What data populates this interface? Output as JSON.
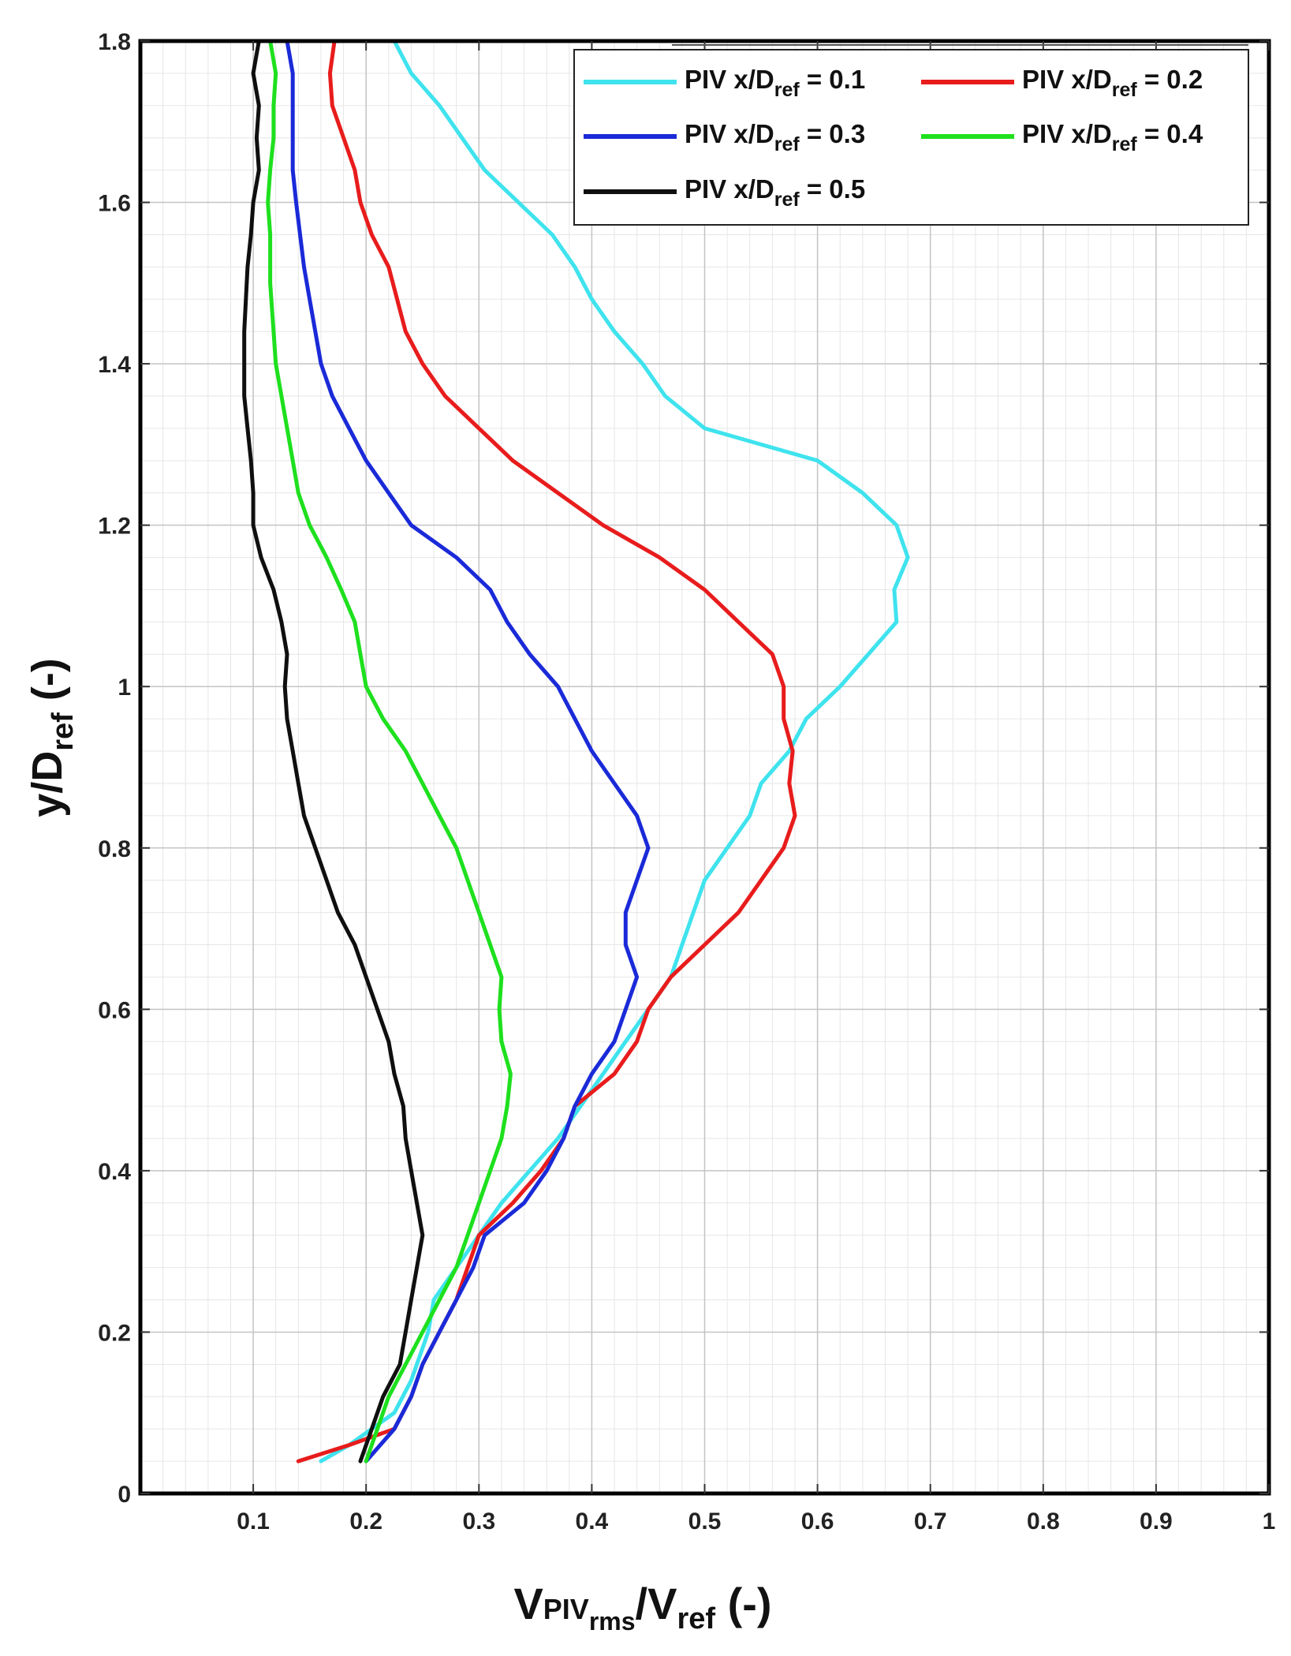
{
  "chart_data": {
    "type": "line",
    "title": "",
    "xlabel": {
      "main": "V",
      "sub": "PIV",
      "subsub": "rms",
      "mid": "/V",
      "sub2": "ref",
      "tail": " (-)"
    },
    "ylabel": {
      "main": "y/D",
      "sub": "ref",
      "tail": " (-)"
    },
    "xlim": [
      0,
      1
    ],
    "ylim": [
      0,
      1.8
    ],
    "grid": true,
    "legend_position": "top-right",
    "x_ticks": [
      {
        "value": 0.1,
        "label": "0.1"
      },
      {
        "value": 0.2,
        "label": "0.2"
      },
      {
        "value": 0.3,
        "label": "0.3"
      },
      {
        "value": 0.4,
        "label": "0.4"
      },
      {
        "value": 0.5,
        "label": "0.5"
      },
      {
        "value": 0.6,
        "label": "0.6"
      },
      {
        "value": 0.7,
        "label": "0.7"
      },
      {
        "value": 0.8,
        "label": "0.8"
      },
      {
        "value": 0.9,
        "label": "0.9"
      },
      {
        "value": 1.0,
        "label": "1"
      }
    ],
    "y_ticks": [
      {
        "value": 0,
        "label": "0"
      },
      {
        "value": 0.2,
        "label": "0.2"
      },
      {
        "value": 0.4,
        "label": "0.4"
      },
      {
        "value": 0.6,
        "label": "0.6"
      },
      {
        "value": 0.8,
        "label": "0.8"
      },
      {
        "value": 1.0,
        "label": "1"
      },
      {
        "value": 1.2,
        "label": "1.2"
      },
      {
        "value": 1.4,
        "label": "1.4"
      },
      {
        "value": 1.6,
        "label": "1.6"
      },
      {
        "value": 1.8,
        "label": "1.8"
      }
    ],
    "series": [
      {
        "name": "PIV x/Dref = 0.1",
        "legend": {
          "prefix": "PIV x/D",
          "sub": "ref",
          "suffix": " = 0.1"
        },
        "color": "#3fe3ee",
        "points": [
          [
            0.16,
            0.04
          ],
          [
            0.185,
            0.06
          ],
          [
            0.205,
            0.08
          ],
          [
            0.225,
            0.1
          ],
          [
            0.24,
            0.14
          ],
          [
            0.255,
            0.2
          ],
          [
            0.26,
            0.24
          ],
          [
            0.28,
            0.28
          ],
          [
            0.3,
            0.32
          ],
          [
            0.32,
            0.36
          ],
          [
            0.345,
            0.4
          ],
          [
            0.37,
            0.44
          ],
          [
            0.39,
            0.48
          ],
          [
            0.41,
            0.52
          ],
          [
            0.43,
            0.56
          ],
          [
            0.45,
            0.6
          ],
          [
            0.47,
            0.64
          ],
          [
            0.49,
            0.72
          ],
          [
            0.5,
            0.76
          ],
          [
            0.52,
            0.8
          ],
          [
            0.54,
            0.84
          ],
          [
            0.55,
            0.88
          ],
          [
            0.575,
            0.92
          ],
          [
            0.59,
            0.96
          ],
          [
            0.62,
            1.0
          ],
          [
            0.645,
            1.04
          ],
          [
            0.67,
            1.08
          ],
          [
            0.668,
            1.12
          ],
          [
            0.68,
            1.16
          ],
          [
            0.67,
            1.2
          ],
          [
            0.64,
            1.24
          ],
          [
            0.6,
            1.28
          ],
          [
            0.55,
            1.3
          ],
          [
            0.5,
            1.32
          ],
          [
            0.465,
            1.36
          ],
          [
            0.445,
            1.4
          ],
          [
            0.42,
            1.44
          ],
          [
            0.4,
            1.48
          ],
          [
            0.385,
            1.52
          ],
          [
            0.365,
            1.56
          ],
          [
            0.335,
            1.6
          ],
          [
            0.305,
            1.64
          ],
          [
            0.285,
            1.68
          ],
          [
            0.265,
            1.72
          ],
          [
            0.24,
            1.76
          ],
          [
            0.225,
            1.8
          ]
        ]
      },
      {
        "name": "PIV x/Dref = 0.2",
        "legend": {
          "prefix": "PIV x/D",
          "sub": "ref",
          "suffix": " = 0.2"
        },
        "color": "#e81c1c",
        "points": [
          [
            0.14,
            0.04
          ],
          [
            0.185,
            0.06
          ],
          [
            0.225,
            0.08
          ],
          [
            0.24,
            0.12
          ],
          [
            0.25,
            0.16
          ],
          [
            0.265,
            0.2
          ],
          [
            0.28,
            0.24
          ],
          [
            0.29,
            0.28
          ],
          [
            0.3,
            0.32
          ],
          [
            0.33,
            0.36
          ],
          [
            0.355,
            0.4
          ],
          [
            0.375,
            0.44
          ],
          [
            0.385,
            0.48
          ],
          [
            0.42,
            0.52
          ],
          [
            0.44,
            0.56
          ],
          [
            0.45,
            0.6
          ],
          [
            0.47,
            0.64
          ],
          [
            0.5,
            0.68
          ],
          [
            0.53,
            0.72
          ],
          [
            0.55,
            0.76
          ],
          [
            0.57,
            0.8
          ],
          [
            0.58,
            0.84
          ],
          [
            0.575,
            0.88
          ],
          [
            0.578,
            0.92
          ],
          [
            0.57,
            0.96
          ],
          [
            0.57,
            1.0
          ],
          [
            0.56,
            1.04
          ],
          [
            0.53,
            1.08
          ],
          [
            0.5,
            1.12
          ],
          [
            0.46,
            1.16
          ],
          [
            0.41,
            1.2
          ],
          [
            0.37,
            1.24
          ],
          [
            0.33,
            1.28
          ],
          [
            0.3,
            1.32
          ],
          [
            0.27,
            1.36
          ],
          [
            0.25,
            1.4
          ],
          [
            0.235,
            1.44
          ],
          [
            0.22,
            1.52
          ],
          [
            0.205,
            1.56
          ],
          [
            0.195,
            1.6
          ],
          [
            0.19,
            1.64
          ],
          [
            0.18,
            1.68
          ],
          [
            0.17,
            1.72
          ],
          [
            0.168,
            1.76
          ],
          [
            0.172,
            1.8
          ]
        ]
      },
      {
        "name": "PIV x/Dref = 0.3",
        "legend": {
          "prefix": "PIV x/D",
          "sub": "ref",
          "suffix": " = 0.3"
        },
        "color": "#1a2ad8",
        "points": [
          [
            0.2,
            0.04
          ],
          [
            0.225,
            0.08
          ],
          [
            0.24,
            0.12
          ],
          [
            0.25,
            0.16
          ],
          [
            0.265,
            0.2
          ],
          [
            0.28,
            0.24
          ],
          [
            0.295,
            0.28
          ],
          [
            0.305,
            0.32
          ],
          [
            0.34,
            0.36
          ],
          [
            0.36,
            0.4
          ],
          [
            0.375,
            0.44
          ],
          [
            0.385,
            0.48
          ],
          [
            0.4,
            0.52
          ],
          [
            0.42,
            0.56
          ],
          [
            0.44,
            0.64
          ],
          [
            0.43,
            0.68
          ],
          [
            0.43,
            0.72
          ],
          [
            0.44,
            0.76
          ],
          [
            0.45,
            0.8
          ],
          [
            0.44,
            0.84
          ],
          [
            0.42,
            0.88
          ],
          [
            0.4,
            0.92
          ],
          [
            0.385,
            0.96
          ],
          [
            0.37,
            1.0
          ],
          [
            0.345,
            1.04
          ],
          [
            0.325,
            1.08
          ],
          [
            0.31,
            1.12
          ],
          [
            0.28,
            1.16
          ],
          [
            0.24,
            1.2
          ],
          [
            0.22,
            1.24
          ],
          [
            0.2,
            1.28
          ],
          [
            0.185,
            1.32
          ],
          [
            0.17,
            1.36
          ],
          [
            0.16,
            1.4
          ],
          [
            0.155,
            1.44
          ],
          [
            0.15,
            1.48
          ],
          [
            0.145,
            1.52
          ],
          [
            0.138,
            1.6
          ],
          [
            0.135,
            1.64
          ],
          [
            0.135,
            1.72
          ],
          [
            0.135,
            1.76
          ],
          [
            0.13,
            1.8
          ]
        ]
      },
      {
        "name": "PIV x/Dref = 0.4",
        "legend": {
          "prefix": "PIV x/D",
          "sub": "ref",
          "suffix": " = 0.4"
        },
        "color": "#1ee01e",
        "points": [
          [
            0.2,
            0.04
          ],
          [
            0.21,
            0.08
          ],
          [
            0.22,
            0.12
          ],
          [
            0.235,
            0.16
          ],
          [
            0.25,
            0.2
          ],
          [
            0.265,
            0.24
          ],
          [
            0.28,
            0.28
          ],
          [
            0.29,
            0.32
          ],
          [
            0.3,
            0.36
          ],
          [
            0.31,
            0.4
          ],
          [
            0.32,
            0.44
          ],
          [
            0.325,
            0.48
          ],
          [
            0.328,
            0.52
          ],
          [
            0.32,
            0.56
          ],
          [
            0.318,
            0.6
          ],
          [
            0.32,
            0.64
          ],
          [
            0.31,
            0.68
          ],
          [
            0.3,
            0.72
          ],
          [
            0.29,
            0.76
          ],
          [
            0.28,
            0.8
          ],
          [
            0.265,
            0.84
          ],
          [
            0.25,
            0.88
          ],
          [
            0.235,
            0.92
          ],
          [
            0.215,
            0.96
          ],
          [
            0.2,
            1.0
          ],
          [
            0.195,
            1.04
          ],
          [
            0.19,
            1.08
          ],
          [
            0.178,
            1.12
          ],
          [
            0.165,
            1.16
          ],
          [
            0.15,
            1.2
          ],
          [
            0.14,
            1.24
          ],
          [
            0.135,
            1.28
          ],
          [
            0.125,
            1.36
          ],
          [
            0.12,
            1.4
          ],
          [
            0.118,
            1.44
          ],
          [
            0.115,
            1.5
          ],
          [
            0.115,
            1.56
          ],
          [
            0.113,
            1.6
          ],
          [
            0.115,
            1.64
          ],
          [
            0.118,
            1.68
          ],
          [
            0.118,
            1.72
          ],
          [
            0.12,
            1.76
          ],
          [
            0.115,
            1.8
          ]
        ]
      },
      {
        "name": "PIV x/Dref = 0.5",
        "legend": {
          "prefix": "PIV x/D",
          "sub": "ref",
          "suffix": " = 0.5"
        },
        "color": "#0f0f0f",
        "points": [
          [
            0.195,
            0.04
          ],
          [
            0.205,
            0.08
          ],
          [
            0.215,
            0.12
          ],
          [
            0.23,
            0.16
          ],
          [
            0.235,
            0.2
          ],
          [
            0.24,
            0.24
          ],
          [
            0.245,
            0.28
          ],
          [
            0.25,
            0.32
          ],
          [
            0.245,
            0.36
          ],
          [
            0.24,
            0.4
          ],
          [
            0.235,
            0.44
          ],
          [
            0.233,
            0.48
          ],
          [
            0.225,
            0.52
          ],
          [
            0.22,
            0.56
          ],
          [
            0.21,
            0.6
          ],
          [
            0.2,
            0.64
          ],
          [
            0.19,
            0.68
          ],
          [
            0.175,
            0.72
          ],
          [
            0.165,
            0.76
          ],
          [
            0.155,
            0.8
          ],
          [
            0.145,
            0.84
          ],
          [
            0.14,
            0.88
          ],
          [
            0.135,
            0.92
          ],
          [
            0.13,
            0.96
          ],
          [
            0.128,
            1.0
          ],
          [
            0.13,
            1.04
          ],
          [
            0.125,
            1.08
          ],
          [
            0.118,
            1.12
          ],
          [
            0.107,
            1.16
          ],
          [
            0.1,
            1.2
          ],
          [
            0.1,
            1.24
          ],
          [
            0.098,
            1.28
          ],
          [
            0.095,
            1.32
          ],
          [
            0.092,
            1.36
          ],
          [
            0.092,
            1.4
          ],
          [
            0.092,
            1.44
          ],
          [
            0.095,
            1.52
          ],
          [
            0.098,
            1.56
          ],
          [
            0.1,
            1.6
          ],
          [
            0.105,
            1.64
          ],
          [
            0.103,
            1.68
          ],
          [
            0.105,
            1.72
          ],
          [
            0.1,
            1.76
          ],
          [
            0.105,
            1.8
          ]
        ]
      }
    ]
  }
}
